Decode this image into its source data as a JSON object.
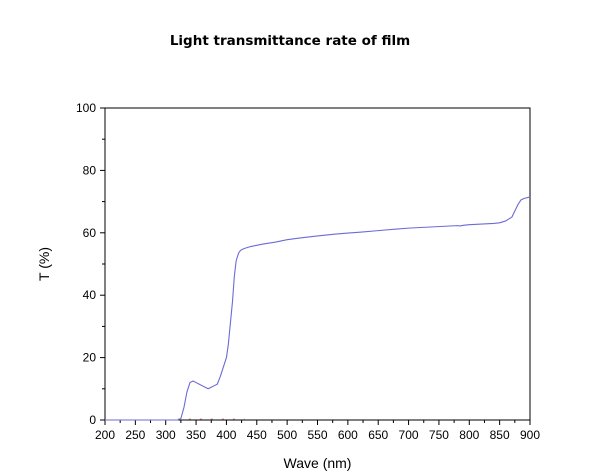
{
  "chart_data": {
    "type": "line",
    "title": "Light transmittance rate of film",
    "xlabel": "Wave (nm)",
    "ylabel": "T (%)",
    "xlim": [
      200,
      900
    ],
    "ylim": [
      0,
      100
    ],
    "xticks": [
      200,
      250,
      300,
      350,
      400,
      450,
      500,
      550,
      600,
      650,
      700,
      750,
      800,
      850,
      900
    ],
    "yticks": [
      0,
      20,
      40,
      60,
      80,
      100
    ],
    "grid": false,
    "legend": "none",
    "colors": {
      "series": "#6b6bd6",
      "baseline": "#e06060",
      "axis": "#000000"
    },
    "series": [
      {
        "x": [
          200,
          320,
          325,
          330,
          335,
          340,
          345,
          350,
          355,
          360,
          365,
          370,
          375,
          380,
          385,
          390,
          395,
          400,
          403,
          406,
          410,
          413,
          416,
          420,
          423,
          426,
          430,
          440,
          450,
          460,
          480,
          500,
          520,
          550,
          580,
          600,
          620,
          650,
          680,
          700,
          720,
          740,
          760,
          780,
          785,
          790,
          800,
          820,
          840,
          850,
          860,
          870,
          875,
          880,
          885,
          890,
          900
        ],
        "y": [
          0,
          0,
          0.5,
          4,
          9,
          12,
          12.5,
          12,
          11.5,
          11,
          10.5,
          10,
          10.5,
          11,
          11.5,
          14,
          17,
          20,
          24,
          30,
          38,
          46,
          51,
          53.5,
          54.3,
          54.7,
          55,
          55.6,
          56,
          56.4,
          57,
          57.8,
          58.3,
          59,
          59.6,
          59.9,
          60.2,
          60.7,
          61.2,
          61.5,
          61.7,
          61.9,
          62.1,
          62.3,
          62.2,
          62.4,
          62.6,
          62.8,
          63,
          63.2,
          63.8,
          65,
          67,
          69,
          70.5,
          71,
          71.5
        ]
      }
    ]
  }
}
